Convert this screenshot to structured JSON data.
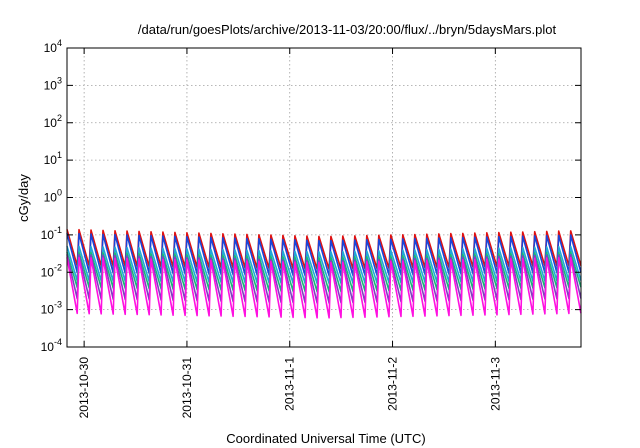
{
  "chart_data": {
    "type": "line",
    "title": "/data/run/goesPlots/archive/2013-11-03/20:00/flux/../bryn/5daysMars.plot",
    "xlabel": "Coordinated Universal Time (UTC)",
    "ylabel": "cGy/day",
    "y_scale": "log",
    "ylim": [
      0.0001,
      10000
    ],
    "y_ticks": [
      {
        "base": "10",
        "exp": "-4",
        "value": 0.0001
      },
      {
        "base": "10",
        "exp": "-3",
        "value": 0.001
      },
      {
        "base": "10",
        "exp": "-2",
        "value": 0.01
      },
      {
        "base": "10",
        "exp": "-1",
        "value": 0.1
      },
      {
        "base": "10",
        "exp": "0",
        "value": 1
      },
      {
        "base": "10",
        "exp": "1",
        "value": 10
      },
      {
        "base": "10",
        "exp": "2",
        "value": 100
      },
      {
        "base": "10",
        "exp": "3",
        "value": 1000
      },
      {
        "base": "10",
        "exp": "4",
        "value": 10000
      }
    ],
    "xlim": [
      "2013-10-29T20:00",
      "2013-11-03T20:00"
    ],
    "x_ticks": [
      {
        "label": "2013-10-30",
        "value": "2013-10-30T00:00"
      },
      {
        "label": "2013-10-31",
        "value": "2013-10-31T00:00"
      },
      {
        "label": "2013-11-1",
        "value": "2013-11-01T00:00"
      },
      {
        "label": "2013-11-2",
        "value": "2013-11-02T00:00"
      },
      {
        "label": "2013-11-3",
        "value": "2013-11-03T00:00"
      }
    ],
    "grid": true,
    "sawtooth_period_hours": 2.8,
    "series": [
      {
        "color": "#e01010",
        "peak": [
          0.14,
          0.09,
          0.13
        ],
        "trough": [
          0.015,
          0.012,
          0.015
        ]
      },
      {
        "color": "#1a44d8",
        "peak": [
          0.11,
          0.07,
          0.1
        ],
        "trough": [
          0.01,
          0.008,
          0.01
        ]
      },
      {
        "color": "#20a8d8",
        "peak": [
          0.05,
          0.035,
          0.05
        ],
        "trough": [
          0.006,
          0.005,
          0.006
        ]
      },
      {
        "color": "#18b878",
        "peak": [
          0.035,
          0.025,
          0.035
        ],
        "trough": [
          0.004,
          0.003,
          0.004
        ]
      },
      {
        "color": "#8040c0",
        "peak": [
          0.03,
          0.02,
          0.03
        ],
        "trough": [
          0.002,
          0.0015,
          0.002
        ]
      },
      {
        "color": "#ff10e0",
        "peak": [
          0.025,
          0.018,
          0.025
        ],
        "trough": [
          0.0008,
          0.0006,
          0.0008
        ]
      }
    ]
  }
}
